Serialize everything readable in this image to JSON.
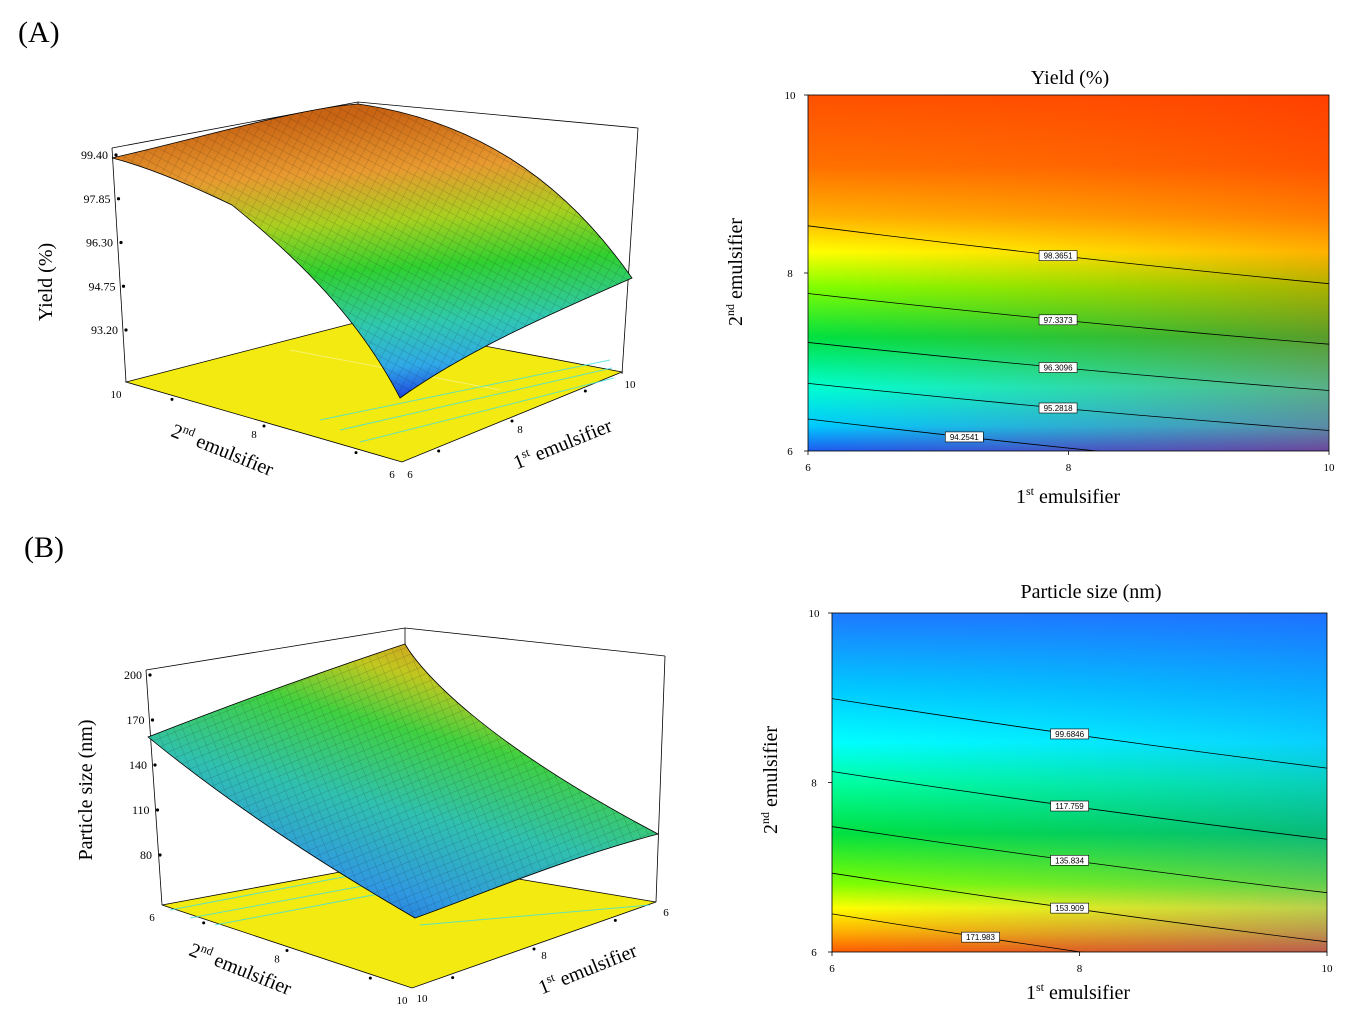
{
  "panels": {
    "a": "(A)",
    "b": "(B)"
  },
  "chart_data": [
    {
      "type": "surface3d",
      "panel": "(A)",
      "zlabel": "Yield (%)",
      "xlabel": "1st emulsifier",
      "ylabel": "2nd emulsifier",
      "x_ticks": [
        "6",
        "8",
        "10"
      ],
      "y_ticks": [
        "6",
        "8",
        "10"
      ],
      "z_ticks": [
        "93.20",
        "94.75",
        "96.30",
        "97.85",
        "99.40"
      ],
      "x_range": [
        6,
        10
      ],
      "y_range": [
        6,
        10
      ],
      "z_range": [
        93.2,
        99.4
      ]
    },
    {
      "type": "contour",
      "panel": "(A)",
      "title": "Yield (%)",
      "xlabel": "1st emulsifier",
      "ylabel": "2nd emulsifier",
      "x_ticks": [
        "6",
        "8",
        "10"
      ],
      "y_ticks": [
        "6",
        "8",
        "10"
      ],
      "x_range": [
        6,
        10
      ],
      "y_range": [
        6,
        10
      ],
      "contours": [
        {
          "label": "98.3651",
          "y_at_x6": 8.53,
          "y_at_x10": 7.88
        },
        {
          "label": "97.3373",
          "y_at_x6": 7.77,
          "y_at_x10": 7.2
        },
        {
          "label": "96.3096",
          "y_at_x6": 7.22,
          "y_at_x10": 6.68
        },
        {
          "label": "95.2818",
          "y_at_x6": 6.76,
          "y_at_x10": 6.23
        },
        {
          "label": "94.2541",
          "y_at_x6": 6.36,
          "y_at_x10": 5.75
        }
      ]
    },
    {
      "type": "surface3d",
      "panel": "(B)",
      "zlabel": "Particle size (nm)",
      "xlabel": "1st emulsifier",
      "ylabel": "2nd emulsifier",
      "x_ticks": [
        "6",
        "8",
        "10"
      ],
      "y_ticks": [
        "6",
        "8",
        "10"
      ],
      "z_ticks": [
        "80",
        "110",
        "140",
        "170",
        "200"
      ],
      "x_range": [
        6,
        10
      ],
      "y_range": [
        6,
        10
      ],
      "z_range": [
        80,
        200
      ]
    },
    {
      "type": "contour",
      "panel": "(B)",
      "title": "Particle size (nm)",
      "xlabel": "1st emulsifier",
      "ylabel": "2nd emulsifier",
      "x_ticks": [
        "6",
        "8",
        "10"
      ],
      "y_ticks": [
        "6",
        "8",
        "10"
      ],
      "x_range": [
        6,
        10
      ],
      "y_range": [
        6,
        10
      ],
      "contours": [
        {
          "label": "99.6846",
          "y_at_x6": 8.99,
          "y_at_x10": 8.17
        },
        {
          "label": "117.759",
          "y_at_x6": 8.13,
          "y_at_x10": 7.33
        },
        {
          "label": "135.834",
          "y_at_x6": 7.48,
          "y_at_x10": 6.7
        },
        {
          "label": "153.909",
          "y_at_x6": 6.93,
          "y_at_x10": 6.12
        },
        {
          "label": "171.983",
          "y_at_x6": 6.45,
          "y_at_x10": 5.6
        }
      ]
    }
  ]
}
